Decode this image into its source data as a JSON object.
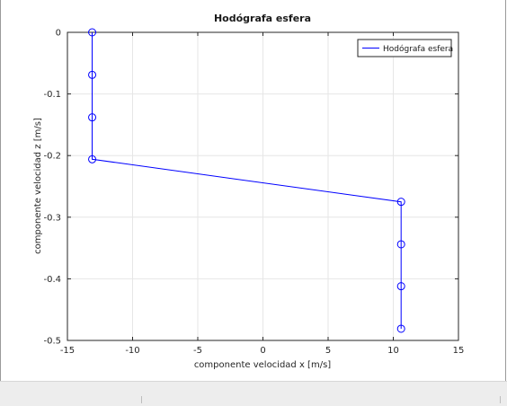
{
  "chart_data": {
    "type": "line",
    "title": "Hodógrafa esfera",
    "xlabel": "componente velocidad x [m/s]",
    "ylabel": "componente velocidad z [m/s]",
    "xlim": [
      -15,
      15
    ],
    "ylim": [
      -0.5,
      0
    ],
    "xticks": [
      "-15",
      "-10",
      "-5",
      "0",
      "5",
      "10",
      "15"
    ],
    "yticks": [
      "0",
      "-0.1",
      "-0.2",
      "-0.3",
      "-0.4",
      "-0.5"
    ],
    "xtick_values": [
      -15,
      -10,
      -5,
      0,
      5,
      10,
      15
    ],
    "ytick_values": [
      0,
      -0.1,
      -0.2,
      -0.3,
      -0.4,
      -0.5
    ],
    "grid": true,
    "legend_position": "top-right",
    "series": [
      {
        "name": "Hodógrafa esfera",
        "color": "#0000ff",
        "marker": "circle",
        "x": [
          -13.1,
          -13.1,
          -13.1,
          -13.1,
          10.6,
          10.6,
          10.6,
          10.6
        ],
        "y": [
          0.0,
          -0.069,
          -0.138,
          -0.206,
          -0.275,
          -0.344,
          -0.412,
          -0.481
        ]
      }
    ]
  }
}
